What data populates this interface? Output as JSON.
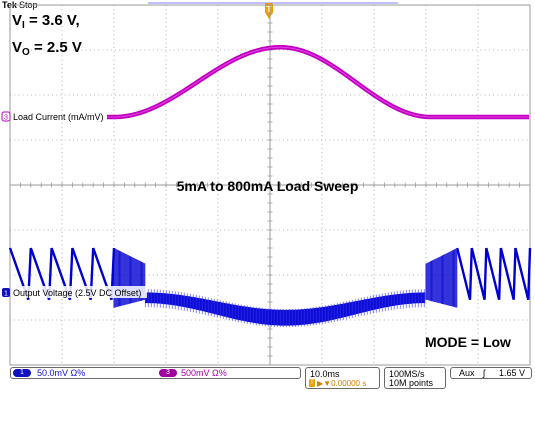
{
  "header": {
    "brand": "Tek",
    "state": "Stop",
    "trigger_marker": "T"
  },
  "annotations": {
    "vi_symbol": "V",
    "vi_sub": "I",
    "vi_value": " = 3.6 V,",
    "vo_symbol": "V",
    "vo_sub": "O",
    "vo_value": " = 2.5 V",
    "title": "5mA to 800mA Load Sweep",
    "mode": "MODE = Low"
  },
  "chart_data": {
    "type": "line",
    "title": "5mA to 800mA Load Sweep",
    "grid": true,
    "divisions": {
      "x": 10,
      "y": 8
    },
    "x": {
      "units": "div",
      "range": [
        0,
        10
      ]
    },
    "series": [
      {
        "name": "Load Current (mA/mV)",
        "channel": "3",
        "color": "#c000c0",
        "scale": "500mV Ω%",
        "ground_marker": "3",
        "ground_div": 0.0,
        "trace": {
          "baseline_div": 0.0,
          "peak_div": 1.55,
          "rise_start_x_div": 2.0,
          "peak_x_div": 5.2,
          "fall_end_x_div": 8.1,
          "thickness_div": 0.1
        }
      },
      {
        "name": "Output Voltage (2.5V DC Offset)",
        "channel": "1",
        "color": "#0000d0",
        "scale": "50.0mV Ω%",
        "ground_marker": "1",
        "ground_div": 0.0,
        "trace": {
          "ripple_high_div": 1.0,
          "ripple_low_div": -0.15,
          "ripple_teeth_left": 5,
          "ripple_teeth_right": 5,
          "burst_left_x_div": [
            2.0,
            2.6
          ],
          "burst_right_x_div": [
            8.0,
            8.6
          ],
          "sag_x_div": [
            2.6,
            8.0
          ],
          "sag_min_div": -0.55,
          "sag_band_div": 0.35
        }
      }
    ]
  },
  "status_bar": {
    "ch1_num": "1",
    "ch1_scale": "50.0mV Ω%",
    "ch3_num": "3",
    "ch3_scale": "500mV Ω%",
    "timebase": "10.0ms",
    "trigger_pos_marker": "T",
    "trigger_delay": "▶▼0.00000 s",
    "sample_rate": "100MS/s",
    "record_length": "10M points",
    "trigger_source": "Aux",
    "trigger_slope": "ʃ",
    "trigger_level": "1.65 V"
  }
}
